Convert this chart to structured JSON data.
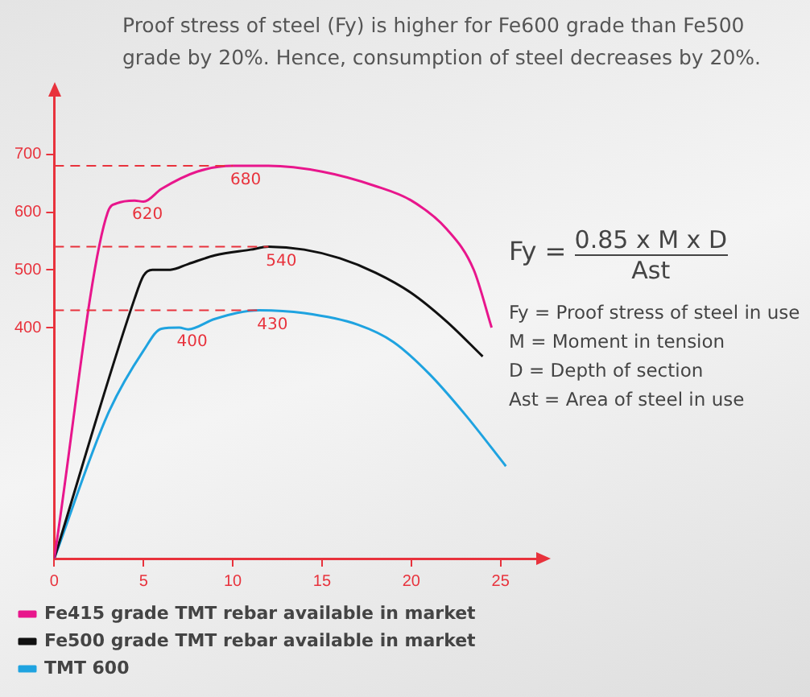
{
  "chart_data": {
    "type": "line",
    "title": "Proof stress of steel (Fy) is higher for Fe600 grade than Fe500 grade by 20%. Hence, consumption of steel decreases by 20%.",
    "xlim": [
      0,
      27
    ],
    "xticks": [
      0,
      5,
      10,
      15,
      20,
      25
    ],
    "ylim": [
      0,
      800
    ],
    "yticks": [
      400,
      500,
      600,
      700
    ],
    "grid": false,
    "legend": "bottom",
    "marker": "none",
    "line_style": "solid",
    "series": [
      {
        "name": "Fe415 grade TMT rebar available in market",
        "color": "#e8168c",
        "x": [
          0,
          3,
          3.5,
          4.5,
          5,
          6,
          8,
          10,
          12,
          15,
          18,
          20,
          22,
          23.5,
          24.5
        ],
        "values": [
          0,
          600,
          615,
          620,
          618,
          640,
          670,
          680,
          680,
          670,
          645,
          620,
          570,
          500,
          400
        ]
      },
      {
        "name": "Fe500 grade TMT rebar available in market",
        "color": "#111111",
        "x": [
          0,
          4.5,
          5,
          5.5,
          6.5,
          7.5,
          9,
          11,
          12,
          14,
          16,
          18,
          20,
          22,
          24
        ],
        "values": [
          0,
          450,
          490,
          500,
          500,
          510,
          525,
          535,
          540,
          535,
          520,
          495,
          460,
          410,
          350
        ]
      },
      {
        "name": "TMT 600",
        "color": "#1fa3e0",
        "x": [
          0,
          3,
          5,
          6,
          7,
          7.5,
          9,
          11.5,
          14,
          17,
          19,
          21,
          23,
          25.3
        ],
        "values": [
          0,
          250,
          360,
          398,
          400,
          397,
          415,
          430,
          425,
          405,
          375,
          320,
          250,
          160
        ]
      }
    ],
    "ref_lines": [
      {
        "axis": "y",
        "value": 680,
        "color": "#e8323c",
        "line_style": "dashed"
      },
      {
        "axis": "y",
        "value": 540,
        "color": "#e8323c",
        "line_style": "dashed"
      },
      {
        "axis": "y",
        "value": 430,
        "color": "#e8323c",
        "line_style": "dashed"
      }
    ],
    "annotations": [
      {
        "text": "680",
        "x": 10,
        "y": 680
      },
      {
        "text": "620",
        "x": 4.5,
        "y": 620
      },
      {
        "text": "540",
        "x": 12,
        "y": 540
      },
      {
        "text": "430",
        "x": 11.5,
        "y": 430
      },
      {
        "text": "400",
        "x": 7,
        "y": 400
      },
      "Fy =",
      "0.85 x M x D",
      "Ast",
      "Fy = Proof stress of steel in use",
      "M = Moment in tension",
      "D = Depth of section",
      "Ast = Area of steel in use"
    ]
  }
}
